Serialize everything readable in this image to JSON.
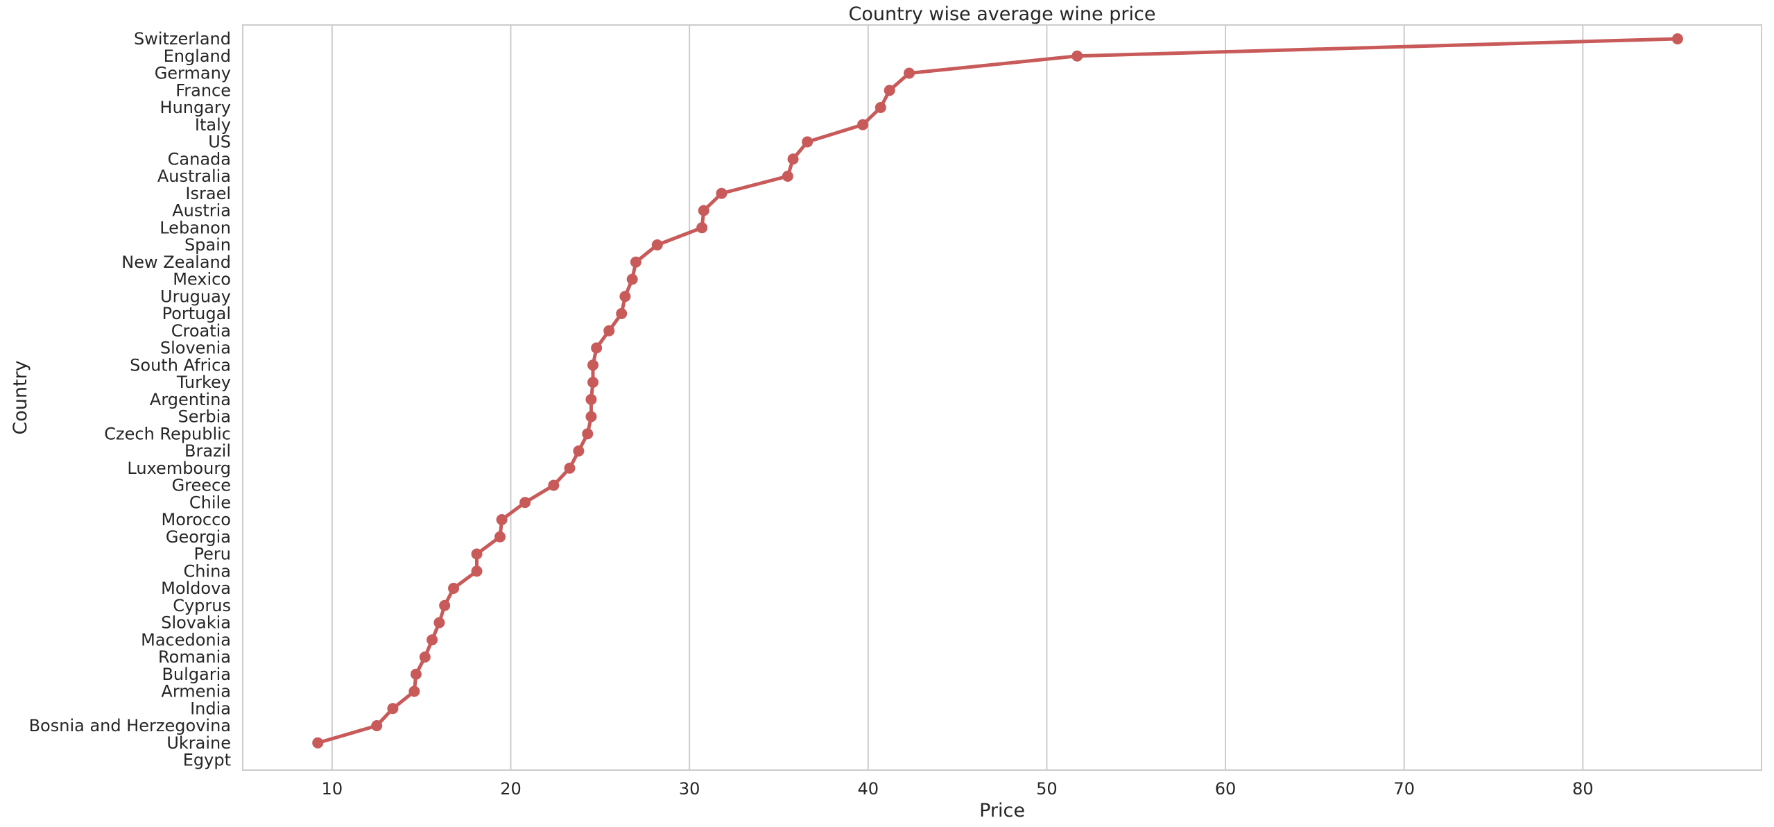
{
  "chart_data": {
    "type": "line",
    "title": "Country wise average wine price",
    "xlabel": "Price",
    "ylabel": "Country",
    "xlim": [
      5,
      90
    ],
    "xticks": [
      10,
      20,
      30,
      40,
      50,
      60,
      70,
      80
    ],
    "grid": "vertical",
    "legend": "none",
    "color": "#c85a5a",
    "categories": [
      "Switzerland",
      "England",
      "Germany",
      "France",
      "Hungary",
      "Italy",
      "US",
      "Canada",
      "Australia",
      "Israel",
      "Austria",
      "Lebanon",
      "Spain",
      "New Zealand",
      "Mexico",
      "Uruguay",
      "Portugal",
      "Croatia",
      "Slovenia",
      "South Africa",
      "Turkey",
      "Argentina",
      "Serbia",
      "Czech Republic",
      "Brazil",
      "Luxembourg",
      "Greece",
      "Chile",
      "Morocco",
      "Georgia",
      "Peru",
      "China",
      "Moldova",
      "Cyprus",
      "Slovakia",
      "Macedonia",
      "Romania",
      "Bulgaria",
      "Armenia",
      "India",
      "Bosnia and Herzegovina",
      "Ukraine",
      "Egypt"
    ],
    "values": [
      85.3,
      51.7,
      42.3,
      41.2,
      40.7,
      39.7,
      36.6,
      35.8,
      35.5,
      31.8,
      30.8,
      30.7,
      28.2,
      27.0,
      26.8,
      26.4,
      26.2,
      25.5,
      24.8,
      24.6,
      24.6,
      24.5,
      24.5,
      24.3,
      23.8,
      23.3,
      22.4,
      20.8,
      19.5,
      19.4,
      18.1,
      18.1,
      16.8,
      16.3,
      16.0,
      15.6,
      15.2,
      14.7,
      14.6,
      13.4,
      12.5,
      9.2,
      null
    ]
  }
}
